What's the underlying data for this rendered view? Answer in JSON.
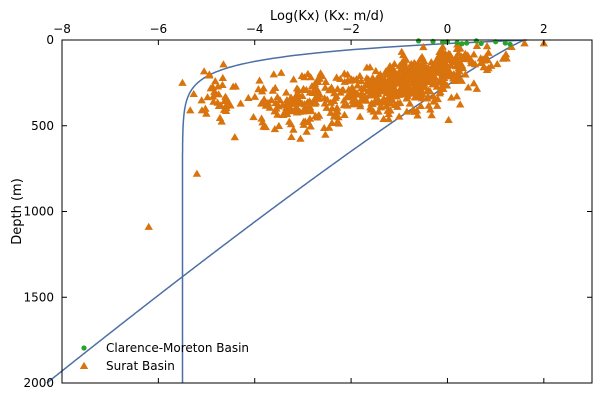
{
  "chart_data": {
    "type": "scatter",
    "title": "",
    "xlabel": "Log(Kx) (Kx: m/d)",
    "ylabel": "Depth (m)",
    "xlim": [
      -8,
      3
    ],
    "ylim": [
      0,
      2000
    ],
    "y_inverted": true,
    "x_axis_position": "top",
    "x_ticks": [
      -8,
      -6,
      -4,
      -2,
      0,
      2
    ],
    "x_tick_labels": [
      "−8",
      "−6",
      "−4",
      "−2",
      "0",
      "2"
    ],
    "y_ticks": [
      0,
      500,
      1000,
      1500,
      2000
    ],
    "y_tick_labels": [
      "0",
      "500",
      "1000",
      "1500",
      "2000"
    ],
    "grid": false,
    "legend_position": "bottom-left",
    "series": [
      {
        "name": "Clarence-Moreton Basin",
        "kind": "scatter",
        "marker": "circle",
        "color": "#2ca02c",
        "points": [
          [
            -0.6,
            5
          ],
          [
            -0.3,
            8
          ],
          [
            0.0,
            10
          ],
          [
            0.2,
            15
          ],
          [
            0.4,
            18
          ],
          [
            0.6,
            5
          ],
          [
            0.7,
            20
          ],
          [
            1.0,
            10
          ],
          [
            1.2,
            18
          ],
          [
            1.3,
            25
          ],
          [
            0.3,
            22
          ],
          [
            -0.1,
            12
          ]
        ]
      },
      {
        "name": "Surat Basin",
        "kind": "scatter",
        "marker": "triangle",
        "color": "#d9730d",
        "count": 700,
        "seed": 7,
        "cloud": {
          "regions": [
            {
              "n": 260,
              "x_mean": -1.2,
              "x_sd": 1.1,
              "y_mean": 300,
              "y_sd": 110
            },
            {
              "n": 180,
              "x_mean": -0.6,
              "x_sd": 0.7,
              "y_mean": 200,
              "y_sd": 80
            },
            {
              "n": 140,
              "x_mean": -3.0,
              "x_sd": 0.9,
              "y_mean": 380,
              "y_sd": 150
            },
            {
              "n": 80,
              "x_mean": 0.3,
              "x_sd": 0.7,
              "y_mean": 110,
              "y_sd": 60
            },
            {
              "n": 40,
              "x_mean": -4.8,
              "x_sd": 0.4,
              "y_mean": 330,
              "y_sd": 140
            }
          ],
          "bounds": {
            "x": [
              -6.3,
              2.1
            ],
            "y": [
              20,
              820
            ]
          }
        },
        "extra_points": [
          [
            -6.2,
            1090
          ],
          [
            -5.2,
            780
          ],
          [
            2.0,
            20
          ],
          [
            1.6,
            20
          ],
          [
            -5.5,
            250
          ]
        ]
      },
      {
        "kind": "line",
        "color": "#4c6fa5",
        "formula": "x = 1.6 - 0.0106*d^0.9",
        "depth_range": [
          0,
          2000
        ]
      },
      {
        "kind": "line",
        "color": "#4c6fa5",
        "formula": "x = -5.5 + 7.15*exp(-d/80)",
        "depth_range": [
          0,
          2000
        ]
      }
    ]
  }
}
